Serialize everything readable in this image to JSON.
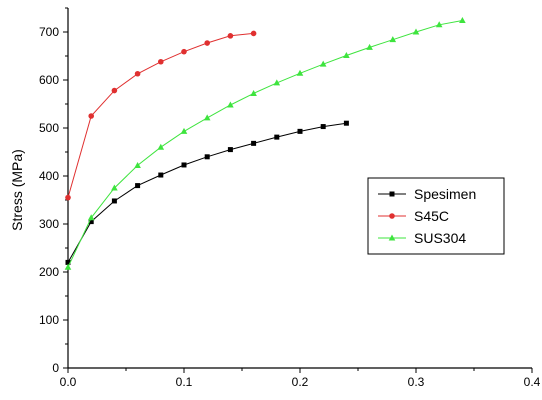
{
  "chart_data": {
    "type": "line",
    "title": "",
    "xlabel": "",
    "ylabel": "Stress (MPa)",
    "xlim": [
      0.0,
      0.4
    ],
    "ylim": [
      0,
      750
    ],
    "x_ticks": [
      0.0,
      0.1,
      0.2,
      0.3,
      0.4
    ],
    "x_tick_labels": [
      "0.0",
      "0.1",
      "0.2",
      "0.3",
      "0.4"
    ],
    "y_ticks": [
      0,
      100,
      200,
      300,
      400,
      500,
      600,
      700
    ],
    "y_tick_labels": [
      "0",
      "100",
      "200",
      "300",
      "400",
      "500",
      "600",
      "700"
    ],
    "grid": false,
    "legend_position": "right",
    "series": [
      {
        "name": "Spesimen",
        "color": "#000000",
        "marker": "square",
        "x": [
          0.0,
          0.02,
          0.04,
          0.06,
          0.08,
          0.1,
          0.12,
          0.14,
          0.16,
          0.18,
          0.2,
          0.22,
          0.24
        ],
        "y": [
          220,
          305,
          348,
          380,
          402,
          423,
          440,
          455,
          468,
          481,
          493,
          503,
          510
        ]
      },
      {
        "name": "S45C",
        "color": "#e03030",
        "marker": "circle",
        "x": [
          0.0,
          0.02,
          0.04,
          0.06,
          0.08,
          0.1,
          0.12,
          0.14,
          0.16
        ],
        "y": [
          355,
          525,
          578,
          613,
          638,
          659,
          677,
          692,
          697
        ]
      },
      {
        "name": "SUS304",
        "color": "#3ee43e",
        "marker": "triangle",
        "x": [
          0.0,
          0.02,
          0.04,
          0.06,
          0.08,
          0.1,
          0.12,
          0.14,
          0.16,
          0.18,
          0.2,
          0.22,
          0.24,
          0.26,
          0.28,
          0.3,
          0.32,
          0.34
        ],
        "y": [
          210,
          313,
          375,
          422,
          460,
          493,
          521,
          548,
          572,
          594,
          614,
          633,
          651,
          668,
          684,
          700,
          715,
          724
        ]
      }
    ]
  }
}
